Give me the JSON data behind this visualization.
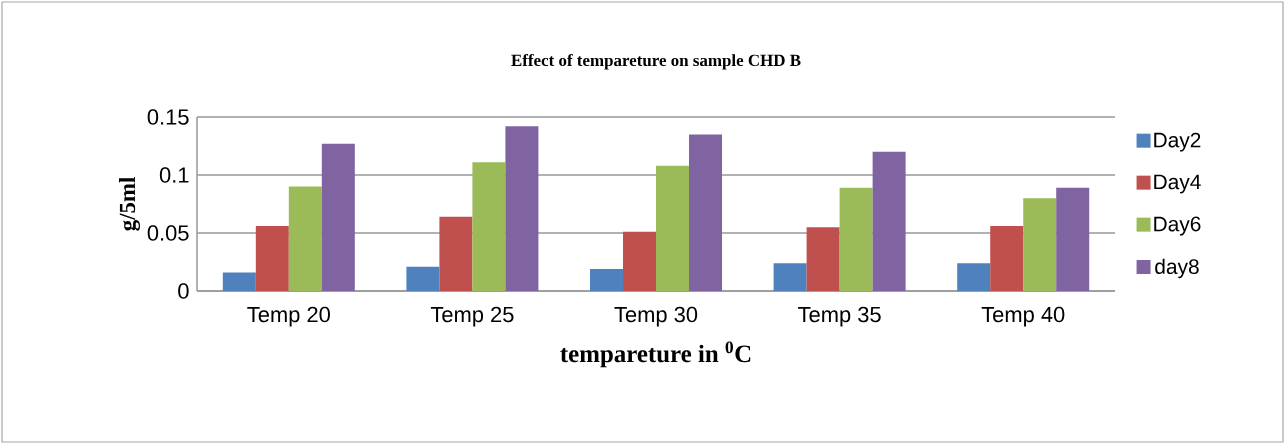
{
  "chart_data": {
    "type": "bar",
    "title": "Effect of tempareture on sample CHD B",
    "xlabel": "tempareture in $^{0}$C",
    "ylabel": "g/5ml",
    "categories": [
      "Temp 20",
      "Temp 25",
      "Temp 30",
      "Temp 35",
      "Temp 40"
    ],
    "series": [
      {
        "name": "Day2",
        "color": "#4f81bd",
        "values": [
          0.016,
          0.021,
          0.019,
          0.024,
          0.024
        ]
      },
      {
        "name": "Day4",
        "color": "#c0504d",
        "values": [
          0.056,
          0.064,
          0.051,
          0.055,
          0.056
        ]
      },
      {
        "name": "Day6",
        "color": "#9bbb59",
        "values": [
          0.09,
          0.111,
          0.108,
          0.089,
          0.08
        ]
      },
      {
        "name": "day8",
        "color": "#8064a2",
        "values": [
          0.127,
          0.142,
          0.135,
          0.12,
          0.089
        ]
      }
    ],
    "ylim": [
      0,
      0.15
    ],
    "yticks": [
      0,
      0.05,
      0.1,
      0.15
    ],
    "grid": "y",
    "legend": "right"
  }
}
